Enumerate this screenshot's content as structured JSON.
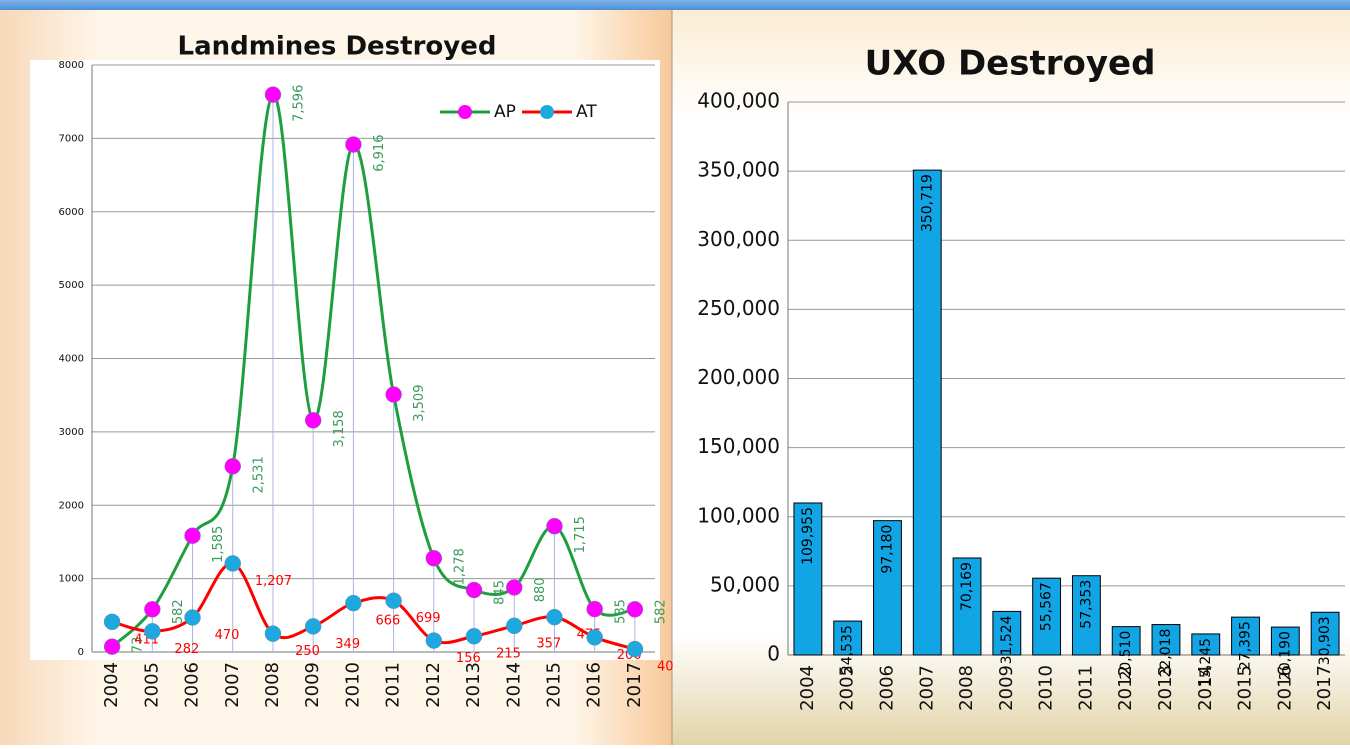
{
  "chart_data": [
    {
      "type": "line",
      "title": "Landmines Destroyed",
      "categories": [
        "2004",
        "2005",
        "2006",
        "2007",
        "2008",
        "2009",
        "2010",
        "2011",
        "2012",
        "2013",
        "2014",
        "2015",
        "2016",
        "2017"
      ],
      "series": [
        {
          "name": "AP",
          "color": "#1e9e3e",
          "marker_color": "#ff00ff",
          "label_color": "#3a9a5a",
          "values": [
            73,
            582,
            1585,
            2531,
            7596,
            3158,
            6916,
            3509,
            1278,
            845,
            880,
            1715,
            585,
            582
          ],
          "value_labels": [
            "73",
            "582",
            "1,585",
            "2,531",
            "7,596",
            "3,158",
            "6,916",
            "3,509",
            "1,278",
            "845",
            "880",
            "1,715",
            "585",
            "582"
          ]
        },
        {
          "name": "AT",
          "color": "#ff0000",
          "marker_color": "#1fa8e0",
          "label_color": "#ff0000",
          "values": [
            411,
            282,
            470,
            1207,
            250,
            349,
            666,
            699,
            156,
            215,
            357,
            475,
            200,
            40
          ],
          "value_labels": [
            "411",
            "282",
            "470",
            "1,207",
            "250",
            "349",
            "666",
            "699",
            "156",
            "215",
            "357",
            "475",
            "200",
            "40"
          ]
        }
      ],
      "ylim": [
        0,
        8000
      ],
      "yticks": [
        0,
        1000,
        2000,
        3000,
        4000,
        5000,
        6000,
        7000,
        8000
      ],
      "grid": true,
      "legend": "top-right"
    },
    {
      "type": "bar",
      "title": "UXO Destroyed",
      "categories": [
        "2004",
        "2005",
        "2006",
        "2007",
        "2008",
        "2009",
        "2010",
        "2011",
        "2012",
        "2013",
        "2014",
        "2015",
        "2016",
        "2017"
      ],
      "values": [
        109955,
        24535,
        97180,
        350719,
        70169,
        31524,
        55567,
        57353,
        20510,
        22018,
        15245,
        27395,
        20190,
        30903
      ],
      "value_labels": [
        "109,955",
        "24,535",
        "97,180",
        "350,719",
        "70,169",
        "31,524",
        "55,567",
        "57,353",
        "20,510",
        "22,018",
        "15,245",
        "27,395",
        "20,190",
        "30,903"
      ],
      "color": "#12a5e6",
      "ylim": [
        0,
        400000
      ],
      "yticks": [
        0,
        {
          "value": 50000,
          "label": "50,000"
        },
        {
          "value": 100000,
          "label": "100,000"
        },
        {
          "value": 150000,
          "label": "150,000"
        },
        {
          "value": 200000,
          "label": "200,000"
        },
        {
          "value": 250000,
          "label": "250,000"
        },
        {
          "value": 300000,
          "label": "300,000"
        },
        {
          "value": 350000,
          "label": "350,000"
        },
        {
          "value": 400000,
          "label": "400,000"
        }
      ],
      "grid": true
    }
  ]
}
